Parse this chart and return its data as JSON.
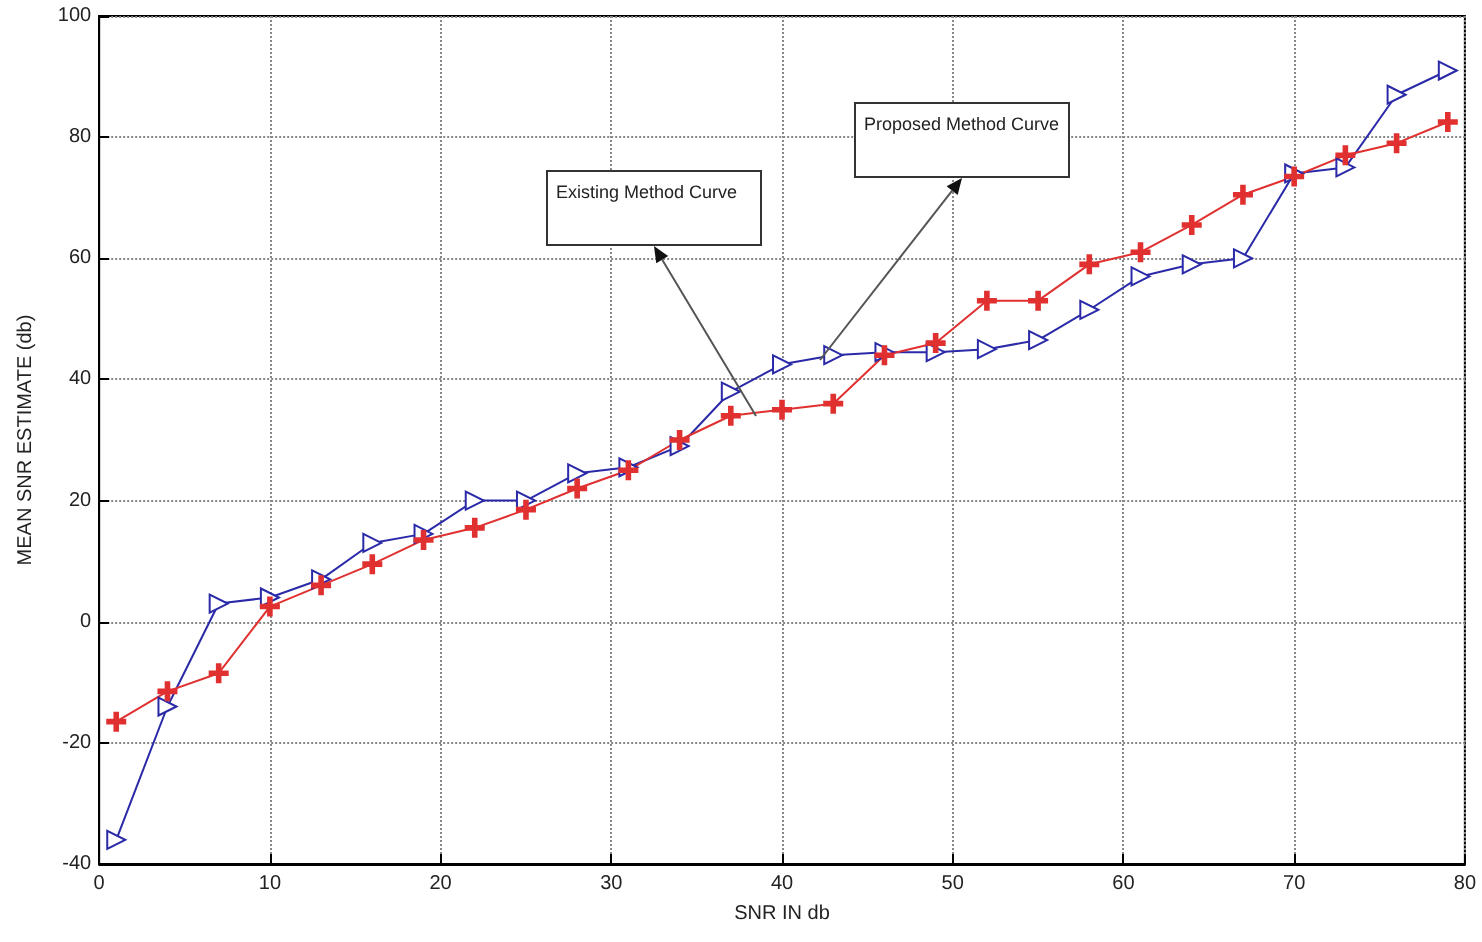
{
  "chart_data": {
    "type": "line",
    "xlabel": "SNR IN db",
    "ylabel": "MEAN SNR ESTIMATE (db)",
    "x": [
      1,
      4,
      7,
      10,
      13,
      16,
      19,
      22,
      25,
      28,
      31,
      34,
      37,
      40,
      43,
      46,
      49,
      52,
      55,
      58,
      61,
      64,
      67,
      70,
      73,
      76,
      79
    ],
    "series": [
      {
        "color": "#2a2aa8",
        "marker": "triangle",
        "values": [
          -36,
          -14,
          3,
          4,
          7,
          13,
          14.5,
          20,
          20,
          24.5,
          25.5,
          29,
          38,
          42.5,
          44,
          44.5,
          44.5,
          45,
          46.5,
          51.5,
          57,
          59,
          60,
          74,
          75,
          87,
          91
        ]
      },
      {
        "color": "#e03030",
        "marker": "cross",
        "values": [
          -16.5,
          -11.5,
          -8.5,
          2.5,
          6,
          9.5,
          13.5,
          15.5,
          18.5,
          22,
          25,
          30,
          34,
          35,
          36,
          44,
          46,
          53,
          53,
          59,
          61,
          65.5,
          70.5,
          73.5,
          77,
          79,
          82.5
        ]
      }
    ],
    "xlim": [
      0,
      80
    ],
    "xticks": [
      0,
      10,
      20,
      30,
      40,
      50,
      60,
      70,
      80
    ],
    "ylim": [
      -40,
      100
    ],
    "yticks": [
      -40,
      -20,
      0,
      20,
      40,
      60,
      80,
      100
    ],
    "grid": true,
    "line_style": "solid",
    "annotations": [
      "Existing Method Curve",
      "Proposed Method Curve"
    ]
  }
}
